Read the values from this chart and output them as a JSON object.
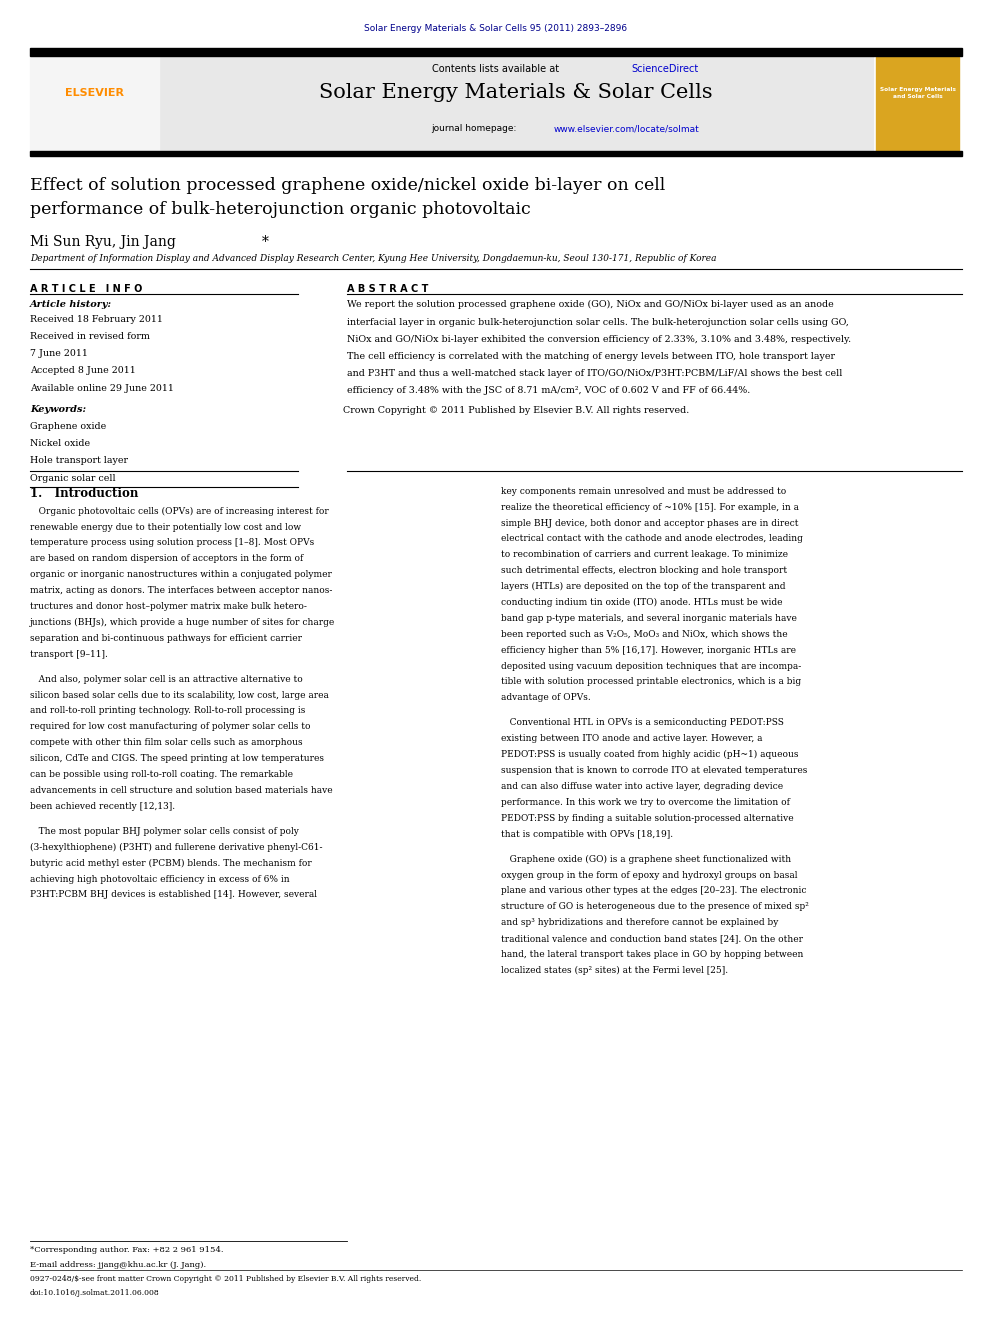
{
  "page_width": 9.92,
  "page_height": 13.23,
  "bg_color": "#ffffff",
  "journal_ref": "Solar Energy Materials & Solar Cells 95 (2011) 2893–2896",
  "journal_ref_color": "#00008B",
  "header_bg": "#e8e8e8",
  "header_sciencedirect_color": "#0000CD",
  "journal_title": "Solar Energy Materials & Solar Cells",
  "journal_homepage_url_color": "#0000CD",
  "article_title": "Effect of solution processed graphene oxide/nickel oxide bi-layer on cell\nperformance of bulk-heterojunction organic photovoltaic",
  "affiliation": "Department of Information Display and Advanced Display Research Center, Kyung Hee University, Dongdaemun-ku, Seoul 130-171, Republic of Korea",
  "article_history": "Received 18 February 2011\nReceived in revised form\n7 June 2011\nAccepted 8 June 2011\nAvailable online 29 June 2011",
  "keywords": "Graphene oxide\nNickel oxide\nHole transport layer\nOrganic solar cell",
  "abstract_text": "We report the solution processed graphene oxide (GO), NiOx and GO/NiOx bi-layer used as an anode\ninterfacial layer in organic bulk-heterojunction solar cells. The bulk-heterojunction solar cells using GO,\nNiOx and GO/NiOx bi-layer exhibited the conversion efficiency of 2.33%, 3.10% and 3.48%, respectively.\nThe cell efficiency is correlated with the matching of energy levels between ITO, hole transport layer\nand P3HT and thus a well-matched stack layer of ITO/GO/NiOx/P3HT:PCBM/LiF/Al shows the best cell\nefficiency of 3.48% with the JSC of 8.71 mA/cm², VOC of 0.602 V and FF of 66.44%.",
  "abstract_copyright": "Crown Copyright © 2011 Published by Elsevier B.V. All rights reserved.",
  "section1_title": "1.   Introduction",
  "section1_left": [
    "   Organic photovoltaic cells (OPVs) are of increasing interest for",
    "renewable energy due to their potentially low cost and low",
    "temperature process using solution process [1–8]. Most OPVs",
    "are based on random dispersion of acceptors in the form of",
    "organic or inorganic nanostructures within a conjugated polymer",
    "matrix, acting as donors. The interfaces between acceptor nanos-",
    "tructures and donor host–polymer matrix make bulk hetero-",
    "junctions (BHJs), which provide a huge number of sites for charge",
    "separation and bi-continuous pathways for efficient carrier",
    "transport [9–11].",
    "",
    "   And also, polymer solar cell is an attractive alternative to",
    "silicon based solar cells due to its scalability, low cost, large area",
    "and roll-to-roll printing technology. Roll-to-roll processing is",
    "required for low cost manufacturing of polymer solar cells to",
    "compete with other thin film solar cells such as amorphous",
    "silicon, CdTe and CIGS. The speed printing at low temperatures",
    "can be possible using roll-to-roll coating. The remarkable",
    "advancements in cell structure and solution based materials have",
    "been achieved recently [12,13].",
    "",
    "   The most popular BHJ polymer solar cells consist of poly",
    "(3-hexylthiophene) (P3HT) and fullerene derivative phenyl-C61-",
    "butyric acid methyl ester (PCBM) blends. The mechanism for",
    "achieving high photovoltaic efficiency in excess of 6% in",
    "P3HT:PCBM BHJ devices is established [14]. However, several"
  ],
  "section1_right": [
    "key components remain unresolved and must be addressed to",
    "realize the theoretical efficiency of ~10% [15]. For example, in a",
    "simple BHJ device, both donor and acceptor phases are in direct",
    "electrical contact with the cathode and anode electrodes, leading",
    "to recombination of carriers and current leakage. To minimize",
    "such detrimental effects, electron blocking and hole transport",
    "layers (HTLs) are deposited on the top of the transparent and",
    "conducting indium tin oxide (ITO) anode. HTLs must be wide",
    "band gap p-type materials, and several inorganic materials have",
    "been reported such as V₂O₅, MoO₃ and NiOx, which shows the",
    "efficiency higher than 5% [16,17]. However, inorganic HTLs are",
    "deposited using vacuum deposition techniques that are incompa-",
    "tible with solution processed printable electronics, which is a big",
    "advantage of OPVs.",
    "",
    "   Conventional HTL in OPVs is a semiconducting PEDOT:PSS",
    "existing between ITO anode and active layer. However, a",
    "PEDOT:PSS is usually coated from highly acidic (pH~1) aqueous",
    "suspension that is known to corrode ITO at elevated temperatures",
    "and can also diffuse water into active layer, degrading device",
    "performance. In this work we try to overcome the limitation of",
    "PEDOT:PSS by finding a suitable solution-processed alternative",
    "that is compatible with OPVs [18,19].",
    "",
    "   Graphene oxide (GO) is a graphene sheet functionalized with",
    "oxygen group in the form of epoxy and hydroxyl groups on basal",
    "plane and various other types at the edges [20–23]. The electronic",
    "structure of GO is heterogeneous due to the presence of mixed sp²",
    "and sp³ hybridizations and therefore cannot be explained by",
    "traditional valence and conduction band states [24]. On the other",
    "hand, the lateral transport takes place in GO by hopping between",
    "localized states (sp² sites) at the Fermi level [25]."
  ],
  "footnote_star": "*Corresponding author. Fax: +82 2 961 9154.",
  "footnote_email": "E-mail address: jjang@khu.ac.kr (J. Jang).",
  "issn_line": "0927-0248/$-see front matter Crown Copyright © 2011 Published by Elsevier B.V. All rights reserved.",
  "doi_line": "doi:10.1016/j.solmat.2011.06.008"
}
